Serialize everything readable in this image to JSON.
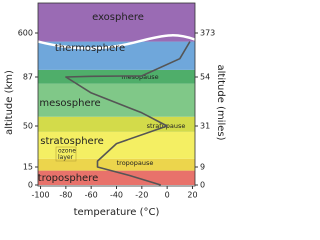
{
  "chart_data": {
    "type": "line",
    "x_label": "temperature (°C)",
    "y_label": "altitude (km)",
    "y2_label": "altitude (miles)",
    "xlim": [
      -102,
      22
    ],
    "xticks": [
      -100,
      -80,
      -60,
      -40,
      -20,
      0,
      20
    ],
    "ylim": [
      0,
      700
    ],
    "yticks": [
      0,
      15,
      50,
      87,
      600
    ],
    "y2lim": [
      0,
      435
    ],
    "y2ticks": [
      0,
      9,
      31,
      54,
      373
    ],
    "layers": [
      {
        "name": "troposphere",
        "from": 0,
        "to": 12,
        "color": "#e8726b"
      },
      {
        "name": "tropopause",
        "from": 12,
        "to": 22,
        "color": "#ecd54c"
      },
      {
        "name": "stratosphere",
        "from": 22,
        "to": 45,
        "color": "#f4ef63"
      },
      {
        "name": "stratopause",
        "from": 45,
        "to": 57,
        "color": "#d3db4a"
      },
      {
        "name": "mesosphere",
        "from": 57,
        "to": 82,
        "color": "#80c888"
      },
      {
        "name": "mesopause",
        "from": 82,
        "to": 170,
        "color": "#4fae6a"
      },
      {
        "name": "thermosphere",
        "from": 170,
        "to": 500,
        "color": "#6fa7db"
      },
      {
        "name": "exosphere",
        "from": 500,
        "to": 700,
        "color": "#9a6bb4"
      }
    ],
    "ozone_label": [
      "ozone",
      "layer"
    ],
    "series": [
      {
        "name": "temperature",
        "color": "#555555",
        "x": [
          -5,
          -30,
          -55,
          -55,
          -40,
          0,
          -20,
          -60,
          -80,
          -60,
          -20,
          10,
          18
        ],
        "values": [
          0,
          8,
          15,
          20,
          35,
          50,
          60,
          75,
          87,
          95,
          100,
          300,
          500
        ]
      }
    ]
  }
}
